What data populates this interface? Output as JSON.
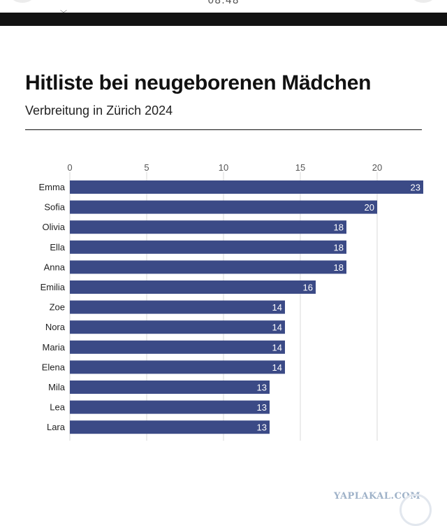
{
  "status_bar": {
    "time": "08:48"
  },
  "title": "Hitliste bei neugeborenen Mädchen",
  "subtitle": "Verbreitung in Zürich 2024",
  "watermark": "YAPLAKAL.COM",
  "colors": {
    "bar": "#3b4a86",
    "grid": "#d9d9d9",
    "text": "#222222",
    "bar_label": "#ffffff"
  },
  "chart_data": {
    "type": "bar",
    "orientation": "horizontal",
    "title": "Hitliste bei neugeborenen Mädchen",
    "subtitle": "Verbreitung in Zürich 2024",
    "categories": [
      "Emma",
      "Sofia",
      "Olivia",
      "Ella",
      "Anna",
      "Emilia",
      "Zoe",
      "Nora",
      "Maria",
      "Elena",
      "Mila",
      "Lea",
      "Lara"
    ],
    "values": [
      23,
      20,
      18,
      18,
      18,
      16,
      14,
      14,
      14,
      14,
      13,
      13,
      13
    ],
    "xticks": [
      0,
      5,
      10,
      15,
      20
    ],
    "xlim": [
      0,
      23
    ],
    "xlabel": "",
    "ylabel": "",
    "grid": true,
    "axis_position": "top",
    "data_labels": true
  }
}
